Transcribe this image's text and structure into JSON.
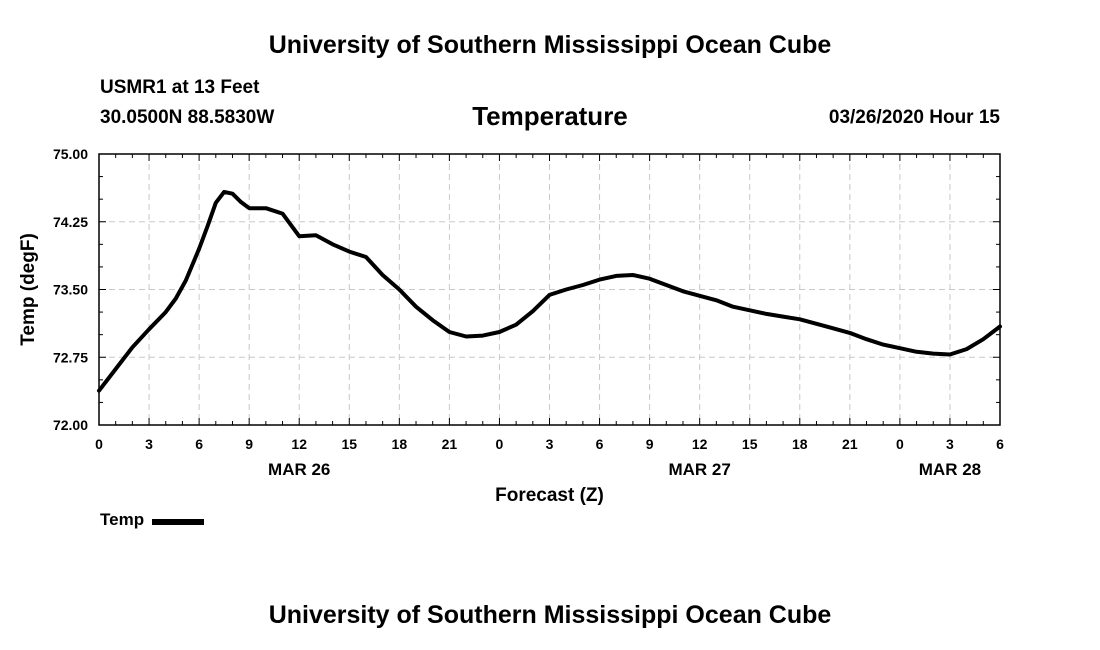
{
  "header": {
    "title": "University of Southern Mississippi Ocean Cube",
    "station": "USMR1 at 13 Feet",
    "coords": "30.0500N 88.5830W",
    "variable": "Temperature",
    "datetime": "03/26/2020 Hour 15"
  },
  "footer": {
    "title": "University of Southern Mississippi Ocean Cube"
  },
  "legend": {
    "label": "Temp"
  },
  "chart_data": {
    "type": "line",
    "title": "Temperature",
    "xlabel": "Forecast (Z)",
    "ylabel": "Temp (degF)",
    "xlim": [
      0,
      54
    ],
    "ylim": [
      72.0,
      75.0
    ],
    "yticks": [
      72.0,
      72.75,
      73.5,
      74.25,
      75.0
    ],
    "ytick_labels": [
      "72.00",
      "72.75",
      "73.50",
      "74.25",
      "75.00"
    ],
    "xticks": [
      0,
      3,
      6,
      9,
      12,
      15,
      18,
      21,
      24,
      27,
      30,
      33,
      36,
      39,
      42,
      45,
      48,
      51,
      54
    ],
    "xtick_labels": [
      "0",
      "3",
      "6",
      "9",
      "12",
      "15",
      "18",
      "21",
      "0",
      "3",
      "6",
      "9",
      "12",
      "15",
      "18",
      "21",
      "0",
      "3",
      "6"
    ],
    "date_labels": [
      {
        "x": 12,
        "label": "MAR 26"
      },
      {
        "x": 36,
        "label": "MAR 27"
      },
      {
        "x": 51,
        "label": "MAR 28"
      }
    ],
    "grid": true,
    "series": [
      {
        "name": "Temp",
        "color": "#000000",
        "x": [
          0,
          1,
          2,
          3,
          4,
          4.6,
          5.2,
          6,
          6.5,
          7,
          7.5,
          8,
          8.5,
          9,
          10,
          11,
          12,
          13,
          14,
          15,
          16,
          16.5,
          17,
          18,
          19,
          20,
          21,
          22,
          23,
          24,
          25,
          26,
          27,
          28,
          29,
          30,
          31,
          32,
          33,
          34,
          35,
          36,
          37,
          38,
          39,
          40,
          41,
          42,
          43,
          44,
          45,
          46,
          47,
          48,
          49,
          50,
          51,
          52,
          53,
          54
        ],
        "values": [
          72.38,
          72.62,
          72.86,
          73.06,
          73.25,
          73.4,
          73.6,
          73.95,
          74.2,
          74.46,
          74.58,
          74.56,
          74.47,
          74.4,
          74.4,
          74.34,
          74.09,
          74.1,
          74.0,
          73.92,
          73.86,
          73.76,
          73.66,
          73.5,
          73.31,
          73.16,
          73.03,
          72.98,
          72.99,
          73.03,
          73.11,
          73.26,
          73.44,
          73.5,
          73.55,
          73.61,
          73.65,
          73.66,
          73.62,
          73.55,
          73.48,
          73.43,
          73.38,
          73.31,
          73.27,
          73.23,
          73.2,
          73.17,
          73.12,
          73.07,
          73.02,
          72.95,
          72.89,
          72.85,
          72.81,
          72.79,
          72.78,
          72.84,
          72.95,
          73.09
        ]
      }
    ]
  }
}
